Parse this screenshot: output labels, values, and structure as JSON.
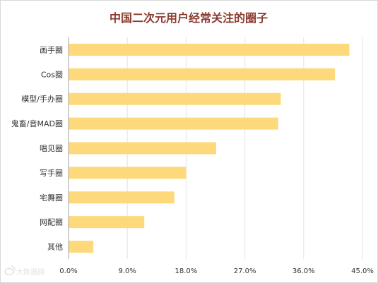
{
  "chart_data": {
    "type": "bar",
    "orientation": "horizontal",
    "title": "中国二次元用户经常关注的圈子",
    "categories": [
      "画手圈",
      "Cos圈",
      "模型/手办圈",
      "鬼畜/音MAD圈",
      "唱见圈",
      "写手圈",
      "宅舞圈",
      "网配圈",
      "其他"
    ],
    "values": [
      43.0,
      40.8,
      32.5,
      32.1,
      22.6,
      18.0,
      16.2,
      11.6,
      3.8
    ],
    "xlim": [
      0,
      45
    ],
    "ticks": [
      "0.0%",
      "9.0%",
      "18.0%",
      "27.0%",
      "36.0%",
      "45.0%"
    ],
    "tick_values": [
      0,
      9,
      18,
      27,
      36,
      45
    ],
    "grid": true,
    "bar_color": "#fdd97c",
    "title_color": "#8b3a2e"
  },
  "watermark": {
    "text": "大数据网",
    "icon": "weibo-icon"
  }
}
